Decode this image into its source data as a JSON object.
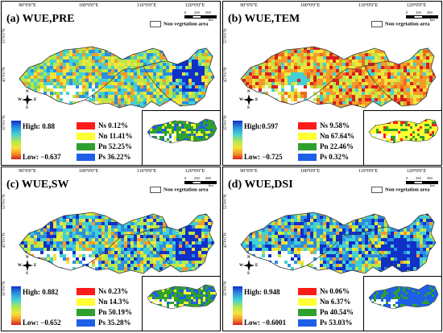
{
  "lon_ticks": [
    "90°0'0\"E",
    "100°0'0\"E",
    "110°0'0\"E",
    "120°0'0\"E"
  ],
  "lat_ticks": [
    "55°0'0\"N",
    "45°0'0\"N",
    "35°0'0\"N"
  ],
  "scale": {
    "labels": [
      "0",
      "250",
      "500"
    ],
    "unit": "km"
  },
  "non_veg_label": "Non vegetation area",
  "compass": {
    "n": "N",
    "s": "S",
    "w": "W",
    "e": "E"
  },
  "legend_colors": {
    "Ns": "#ff1a1a",
    "Nn": "#ffff33",
    "Pn": "#2ea02e",
    "Ps": "#1f5fe8"
  },
  "panels": [
    {
      "title": "(a) WUE,PRE",
      "high": "High: 0.88",
      "low": "Low:  −0.637",
      "legend": [
        "Ns 0.12%",
        "Nn 11.41%",
        "Pn 52.25%",
        "Ps 36.22%"
      ],
      "theme": "pre"
    },
    {
      "title": "(b) WUE,TEM",
      "high": "High:0.597",
      "low": "Low:  −0.725",
      "legend": [
        "Ns 9.58%",
        "Nn 67.64%",
        "Pn 22.46%",
        "Ps 0.32%"
      ],
      "theme": "tem"
    },
    {
      "title": "(c) WUE,SW",
      "high": "High: 0.882",
      "low": "Low:  −0.652",
      "legend": [
        "Ns 0.23%",
        "Nn 14.3%",
        "Pn 50.19%",
        "Ps 35.28%"
      ],
      "theme": "sw"
    },
    {
      "title": "(d) WUE,DSI",
      "high": "High: 0.948",
      "low": "Low:  −0.6001",
      "legend": [
        "Ns 0.06%",
        "Nn 6.37%",
        "Pn 40.54%",
        "Ps 53.03%"
      ],
      "theme": "dsi"
    }
  ]
}
